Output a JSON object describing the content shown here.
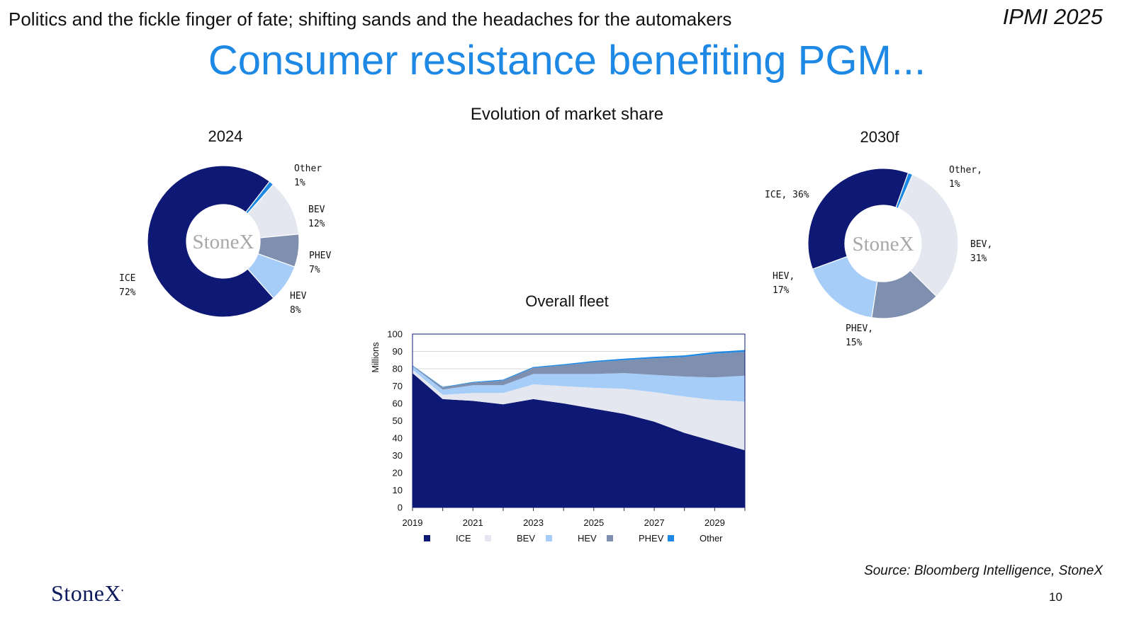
{
  "header": {
    "subtitle": "Politics and the fickle finger of fate; shifting sands and the headaches for the automakers",
    "conference": "IPMI 2025"
  },
  "slide": {
    "title": "Consumer resistance benefiting PGM...",
    "section_title": "Evolution of market share",
    "source": "Source: Bloomberg Intelligence, StoneX",
    "page_number": "10",
    "logo_text": "StoneX",
    "watermark": "StoneX"
  },
  "colors": {
    "ICE": "#0e1875",
    "BEV": "#e4e7ef",
    "HEV": "#a6cdf8",
    "PHEV": "#7e8fb0",
    "Other": "#1e88e5",
    "title_blue": "#1e88e5"
  },
  "chart_data": [
    {
      "type": "pie",
      "title": "2024",
      "labels": [
        "ICE",
        "Other",
        "BEV",
        "PHEV",
        "HEV"
      ],
      "values": [
        72,
        1,
        12,
        7,
        8
      ],
      "slice_labels": [
        {
          "name": "Other",
          "text": "Other\n1%"
        },
        {
          "name": "BEV",
          "text": "BEV\n12%"
        },
        {
          "name": "PHEV",
          "text": "PHEV\n7%"
        },
        {
          "name": "HEV",
          "text": "HEV\n8%"
        },
        {
          "name": "ICE",
          "text": "ICE\n72%"
        }
      ]
    },
    {
      "type": "pie",
      "title": "2030f",
      "labels": [
        "ICE",
        "Other",
        "BEV",
        "PHEV",
        "HEV"
      ],
      "values": [
        36,
        1,
        31,
        15,
        17
      ],
      "slice_labels": [
        {
          "name": "Other",
          "text": "Other,\n1%"
        },
        {
          "name": "ICE",
          "text": "ICE, 36%"
        },
        {
          "name": "BEV",
          "text": "BEV,\n31%"
        },
        {
          "name": "HEV",
          "text": "HEV,\n17%"
        },
        {
          "name": "PHEV",
          "text": "PHEV,\n15%"
        }
      ]
    },
    {
      "type": "area",
      "title": "Overall fleet",
      "ylabel": "Millions",
      "ylim": [
        0,
        100
      ],
      "yticks": [
        0,
        10,
        20,
        30,
        40,
        50,
        60,
        70,
        80,
        90,
        100
      ],
      "x": [
        2019,
        2020,
        2021,
        2022,
        2023,
        2024,
        2025,
        2026,
        2027,
        2028,
        2029,
        2030
      ],
      "xtick_labels": [
        "2019",
        "2021",
        "2023",
        "2025",
        "2027",
        "2029"
      ],
      "stacked": true,
      "legend_position": "bottom",
      "series": [
        {
          "name": "ICE",
          "values": [
            77.5,
            62.5,
            61.5,
            59.5,
            62.5,
            60,
            57,
            54,
            49.5,
            43,
            38,
            33
          ]
        },
        {
          "name": "BEV",
          "values": [
            2,
            2.5,
            4.5,
            6.5,
            8.5,
            10,
            12,
            14.5,
            17,
            21,
            24,
            28
          ]
        },
        {
          "name": "HEV",
          "values": [
            2,
            3,
            4.5,
            4.5,
            6,
            7,
            8,
            9,
            10,
            11.5,
            13,
            15
          ]
        },
        {
          "name": "PHEV",
          "values": [
            0.3,
            1.2,
            1.5,
            2.7,
            3.5,
            5,
            6.8,
            7.5,
            9.5,
            11.3,
            13.7,
            13.8
          ]
        },
        {
          "name": "Other",
          "values": [
            0.2,
            0.3,
            0.4,
            0.5,
            0.5,
            0.6,
            0.7,
            0.8,
            0.9,
            0.9,
            1.0,
            1.0
          ]
        }
      ]
    }
  ]
}
